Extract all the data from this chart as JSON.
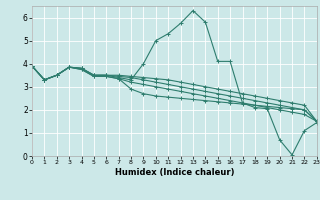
{
  "title": "",
  "xlabel": "Humidex (Indice chaleur)",
  "background_color": "#cce8e8",
  "grid_color": "#ffffff",
  "line_color": "#2e7d6e",
  "xlim": [
    0,
    23
  ],
  "ylim": [
    0,
    6.5
  ],
  "xticks": [
    0,
    1,
    2,
    3,
    4,
    5,
    6,
    7,
    8,
    9,
    10,
    11,
    12,
    13,
    14,
    15,
    16,
    17,
    18,
    19,
    20,
    21,
    22,
    23
  ],
  "yticks": [
    0,
    1,
    2,
    3,
    4,
    5,
    6
  ],
  "lines": [
    {
      "x": [
        0,
        1,
        2,
        3,
        4,
        5,
        6,
        7,
        8,
        9,
        10,
        11,
        12,
        13,
        14,
        15,
        16,
        17,
        18,
        19,
        20,
        21,
        22,
        23
      ],
      "y": [
        3.9,
        3.3,
        3.5,
        3.85,
        3.8,
        3.5,
        3.5,
        3.4,
        3.3,
        4.0,
        5.0,
        5.3,
        5.75,
        6.3,
        5.8,
        4.1,
        4.1,
        2.3,
        2.1,
        2.05,
        0.7,
        0.05,
        1.1,
        1.45
      ]
    },
    {
      "x": [
        0,
        1,
        2,
        3,
        4,
        5,
        6,
        7,
        8,
        9,
        10,
        11,
        12,
        13,
        14,
        15,
        16,
        17,
        18,
        19,
        20,
        21,
        22,
        23
      ],
      "y": [
        3.9,
        3.3,
        3.5,
        3.85,
        3.8,
        3.5,
        3.5,
        3.5,
        3.45,
        3.4,
        3.35,
        3.3,
        3.2,
        3.1,
        3.0,
        2.9,
        2.8,
        2.7,
        2.6,
        2.5,
        2.4,
        2.3,
        2.2,
        1.5
      ]
    },
    {
      "x": [
        0,
        1,
        2,
        3,
        4,
        5,
        6,
        7,
        8,
        9,
        10,
        11,
        12,
        13,
        14,
        15,
        16,
        17,
        18,
        19,
        20,
        21,
        22,
        23
      ],
      "y": [
        3.9,
        3.3,
        3.5,
        3.85,
        3.8,
        3.5,
        3.5,
        3.45,
        3.4,
        3.3,
        3.2,
        3.1,
        3.0,
        2.9,
        2.8,
        2.7,
        2.6,
        2.5,
        2.4,
        2.3,
        2.2,
        2.1,
        2.0,
        1.5
      ]
    },
    {
      "x": [
        0,
        1,
        2,
        3,
        4,
        5,
        6,
        7,
        8,
        9,
        10,
        11,
        12,
        13,
        14,
        15,
        16,
        17,
        18,
        19,
        20,
        21,
        22,
        23
      ],
      "y": [
        3.9,
        3.3,
        3.5,
        3.85,
        3.75,
        3.45,
        3.45,
        3.35,
        3.2,
        3.1,
        3.0,
        2.9,
        2.8,
        2.7,
        2.6,
        2.5,
        2.4,
        2.3,
        2.2,
        2.1,
        2.0,
        1.9,
        1.8,
        1.5
      ]
    },
    {
      "x": [
        0,
        1,
        2,
        3,
        4,
        5,
        6,
        7,
        8,
        9,
        10,
        11,
        12,
        13,
        14,
        15,
        16,
        17,
        18,
        19,
        20,
        21,
        22,
        23
      ],
      "y": [
        3.9,
        3.3,
        3.5,
        3.85,
        3.75,
        3.45,
        3.45,
        3.35,
        2.9,
        2.7,
        2.6,
        2.55,
        2.5,
        2.45,
        2.4,
        2.35,
        2.3,
        2.25,
        2.2,
        2.15,
        2.1,
        2.05,
        2.0,
        1.5
      ]
    }
  ],
  "figsize": [
    3.2,
    2.0
  ],
  "dpi": 100
}
